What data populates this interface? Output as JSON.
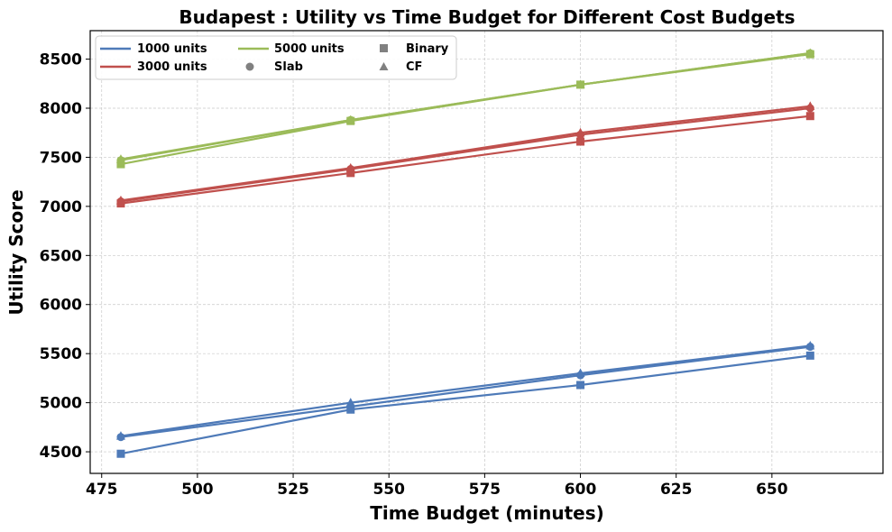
{
  "chart_data": {
    "type": "line",
    "title": "Budapest : Utility vs Time Budget for Different Cost Budgets",
    "xlabel": "Time Budget (minutes)",
    "ylabel": "Utility Score",
    "x": [
      480,
      540,
      600,
      660
    ],
    "xlim": [
      472,
      679
    ],
    "ylim": [
      4280,
      8790
    ],
    "xticks": [
      475,
      500,
      525,
      550,
      575,
      600,
      625,
      650
    ],
    "yticks": [
      4500,
      5000,
      5500,
      6000,
      6500,
      7000,
      7500,
      8000,
      8500
    ],
    "grid": true,
    "legend_position": "top-left",
    "legend": {
      "colors": [
        {
          "label": "1000 units",
          "color": "#4e7ab8"
        },
        {
          "label": "3000 units",
          "color": "#c0504d"
        },
        {
          "label": "5000 units",
          "color": "#9bbb59"
        }
      ],
      "markers": [
        {
          "label": "Binary",
          "marker": "square"
        },
        {
          "label": "Slab",
          "marker": "circle"
        },
        {
          "label": "CF",
          "marker": "triangle"
        }
      ]
    },
    "series": [
      {
        "cost": "1000 units",
        "method": "Binary",
        "color": "#4e7ab8",
        "marker": "square",
        "values": [
          4480,
          4930,
          5180,
          5480
        ]
      },
      {
        "cost": "1000 units",
        "method": "Slab",
        "color": "#4e7ab8",
        "marker": "circle",
        "values": [
          4650,
          4960,
          5280,
          5570
        ]
      },
      {
        "cost": "1000 units",
        "method": "CF",
        "color": "#4e7ab8",
        "marker": "triangle",
        "values": [
          4660,
          5000,
          5300,
          5580
        ]
      },
      {
        "cost": "3000 units",
        "method": "Binary",
        "color": "#c0504d",
        "marker": "square",
        "values": [
          7030,
          7340,
          7660,
          7920
        ]
      },
      {
        "cost": "3000 units",
        "method": "Slab",
        "color": "#c0504d",
        "marker": "circle",
        "values": [
          7050,
          7380,
          7730,
          8000
        ]
      },
      {
        "cost": "3000 units",
        "method": "CF",
        "color": "#c0504d",
        "marker": "triangle",
        "values": [
          7060,
          7390,
          7750,
          8020
        ]
      },
      {
        "cost": "5000 units",
        "method": "Binary",
        "color": "#9bbb59",
        "marker": "square",
        "values": [
          7430,
          7870,
          8240,
          8550
        ]
      },
      {
        "cost": "5000 units",
        "method": "Slab",
        "color": "#9bbb59",
        "marker": "circle",
        "values": [
          7470,
          7880,
          8240,
          8560
        ]
      },
      {
        "cost": "5000 units",
        "method": "CF",
        "color": "#9bbb59",
        "marker": "triangle",
        "values": [
          7480,
          7880,
          8240,
          8560
        ]
      }
    ]
  }
}
